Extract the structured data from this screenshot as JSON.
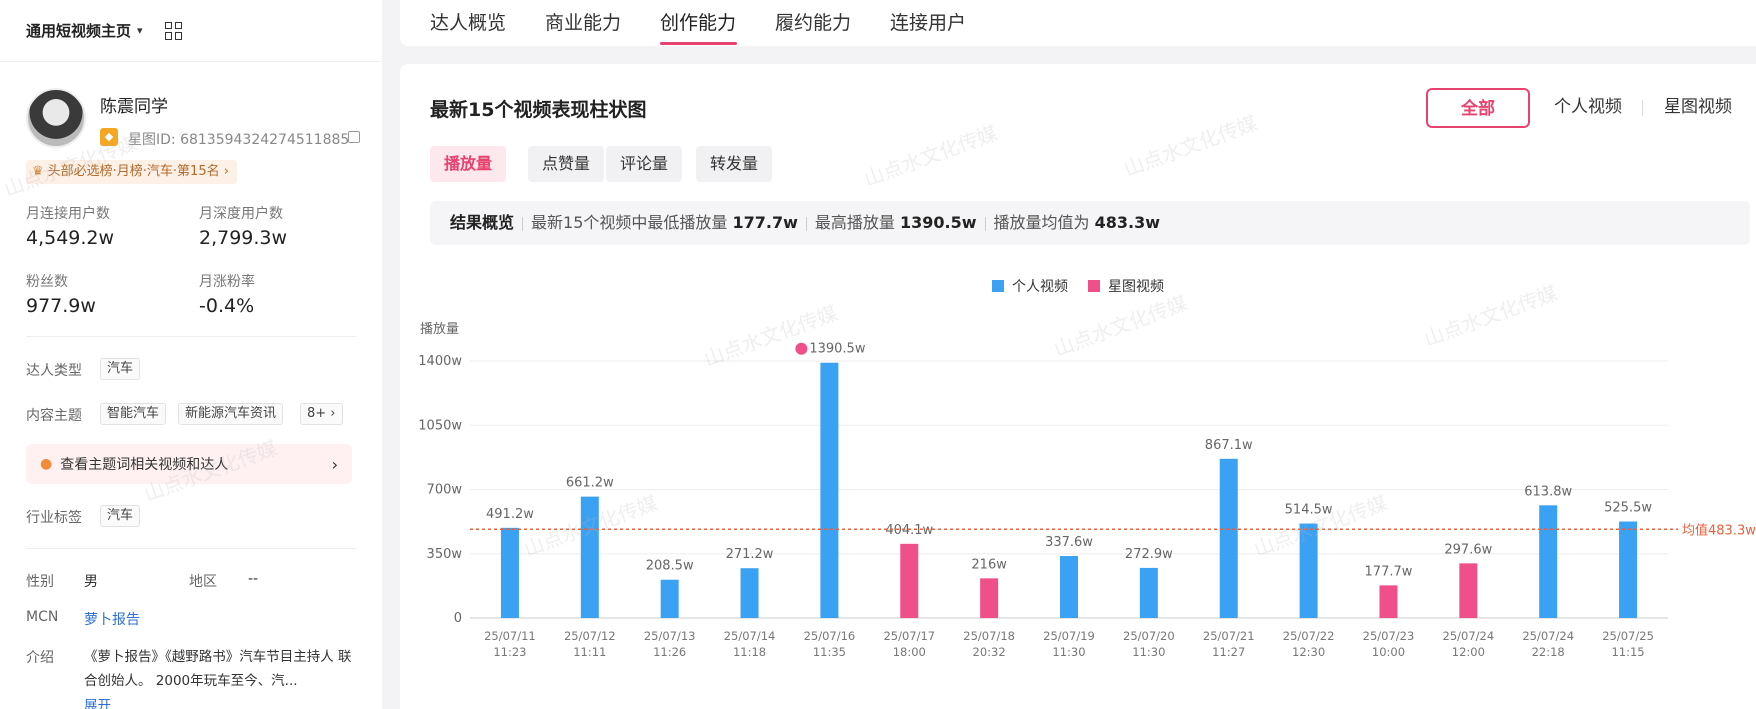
{
  "sidebar": {
    "header": {
      "title": "通用短视频主页",
      "chevron_icon": "chevron-down-icon",
      "qr_icon": "grid-icon"
    },
    "profile": {
      "name": "陈震同学",
      "xingtu_id": "星图ID: 6813594324274511885",
      "rank_badge": "头部必选榜·月榜·汽车·第15名",
      "rank_arrow": "›"
    },
    "stats": [
      {
        "label": "月连接用户数",
        "value": "4,549.2w"
      },
      {
        "label": "月深度用户数",
        "value": "2,799.3w"
      },
      {
        "label": "粉丝数",
        "value": "977.9w"
      },
      {
        "label": "月涨粉率",
        "value": "-0.4%"
      }
    ],
    "talent_type": {
      "label": "达人类型",
      "tag": "汽车"
    },
    "content_theme": {
      "label": "内容主题",
      "tags": [
        "智能汽车",
        "新能源汽车资讯",
        "8+ ›"
      ]
    },
    "topic_link": {
      "text": "查看主题词相关视频和达人",
      "arrow": "›"
    },
    "industry_tag": {
      "label": "行业标签",
      "tag": "汽车"
    },
    "gender": {
      "label": "性别",
      "value": "男"
    },
    "region": {
      "label": "地区",
      "value": "--"
    },
    "mcn": {
      "label": "MCN",
      "value": "萝卜报告"
    },
    "intro": {
      "label": "介绍",
      "text": "《萝卜报告》《越野路书》汽车节目主持人 联合创始人。 2000年玩车至今、汽...",
      "expand": "展开"
    }
  },
  "topnav": {
    "tabs": [
      "达人概览",
      "商业能力",
      "创作能力",
      "履约能力",
      "连接用户"
    ],
    "active": 2
  },
  "main": {
    "title": "最新15个视频表现柱状图",
    "segments": [
      "全部",
      "个人视频",
      "星图视频"
    ],
    "active_segment": 0,
    "metrics": [
      "播放量",
      "点赞量",
      "评论量",
      "转发量"
    ],
    "active_metric": 0,
    "summary": {
      "title": "结果概览",
      "min_text": "最新15个视频中最低播放量",
      "min_value": "177.7w",
      "max_text": "最高播放量",
      "max_value": "1390.5w",
      "avg_text": "播放量均值为",
      "avg_value": "483.3w"
    },
    "watermark": "山点水文化传媒"
  },
  "chart_data": {
    "type": "bar",
    "ylabel": "播放量",
    "unit": "w",
    "ylim": [
      0,
      1400
    ],
    "yticks": [
      0,
      350,
      700,
      1050,
      1400
    ],
    "ytick_labels": [
      "0",
      "350w",
      "700w",
      "1050w",
      "1400w"
    ],
    "legend": [
      {
        "name": "个人视频",
        "color": "#3ba1f3"
      },
      {
        "name": "星图视频",
        "color": "#f0508a"
      }
    ],
    "legend_position": "top-center",
    "average": {
      "value": 483.3,
      "label": "均值483.3w",
      "color": "#e8603c"
    },
    "max_marker_icon": "flame-icon",
    "bars": [
      {
        "date": "25/07/11",
        "time": "11:23",
        "value": 491.2,
        "label": "491.2w",
        "series": "个人视频"
      },
      {
        "date": "25/07/12",
        "time": "11:11",
        "value": 661.2,
        "label": "661.2w",
        "series": "个人视频"
      },
      {
        "date": "25/07/13",
        "time": "11:26",
        "value": 208.5,
        "label": "208.5w",
        "series": "个人视频"
      },
      {
        "date": "25/07/14",
        "time": "11:18",
        "value": 271.2,
        "label": "271.2w",
        "series": "个人视频"
      },
      {
        "date": "25/07/16",
        "time": "11:35",
        "value": 1390.5,
        "label": "1390.5w",
        "series": "个人视频"
      },
      {
        "date": "25/07/17",
        "time": "18:00",
        "value": 404.1,
        "label": "404.1w",
        "series": "星图视频"
      },
      {
        "date": "25/07/18",
        "time": "20:32",
        "value": 216,
        "label": "216w",
        "series": "星图视频"
      },
      {
        "date": "25/07/19",
        "time": "11:30",
        "value": 337.6,
        "label": "337.6w",
        "series": "个人视频"
      },
      {
        "date": "25/07/20",
        "time": "11:30",
        "value": 272.9,
        "label": "272.9w",
        "series": "个人视频"
      },
      {
        "date": "25/07/21",
        "time": "11:27",
        "value": 867.1,
        "label": "867.1w",
        "series": "个人视频"
      },
      {
        "date": "25/07/22",
        "time": "12:30",
        "value": 514.5,
        "label": "514.5w",
        "series": "个人视频"
      },
      {
        "date": "25/07/23",
        "time": "10:00",
        "value": 177.7,
        "label": "177.7w",
        "series": "星图视频"
      },
      {
        "date": "25/07/24",
        "time": "12:00",
        "value": 297.6,
        "label": "297.6w",
        "series": "星图视频"
      },
      {
        "date": "25/07/24",
        "time": "22:18",
        "value": 613.8,
        "label": "613.8w",
        "series": "个人视频"
      },
      {
        "date": "25/07/25",
        "time": "11:15",
        "value": 525.5,
        "label": "525.5w",
        "series": "个人视频"
      }
    ]
  }
}
